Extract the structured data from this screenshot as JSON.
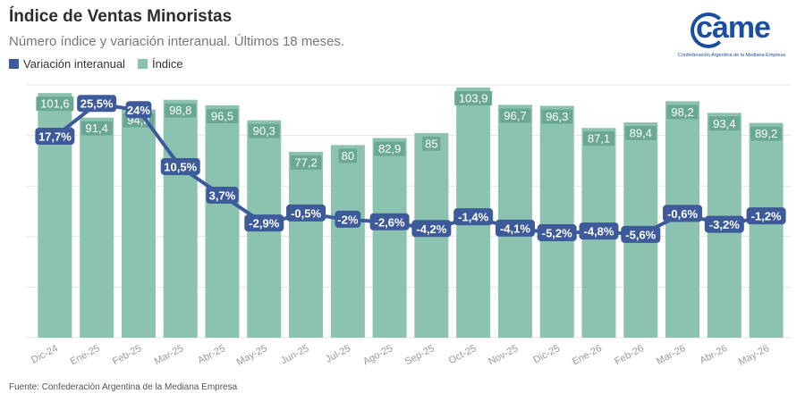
{
  "title": "Índice de Ventas Minoristas",
  "subtitle": "Número índice y variación interanual. Últimos 18 meses.",
  "legend": {
    "line": "Variación interanual",
    "bar": "Índice"
  },
  "logo": {
    "word": "came",
    "caption": "Confederación Argentina de la Mediana Empresa"
  },
  "source": "Fuente: Confederación Argentina de la Mediana Empresa",
  "colors": {
    "bar": "#8cc2b0",
    "bar_label_bg": "#6aa895",
    "line": "#3d5a9a",
    "grid": "#e6e6e6"
  },
  "chart_data": {
    "type": "bar",
    "categories": [
      "Dic-24",
      "Ene-25",
      "Feb-25",
      "Mar-25",
      "Abr-25",
      "May-25",
      "Jun-25",
      "Jul-25",
      "Ago-25",
      "Sep-25",
      "Oct-25",
      "Nov-25",
      "Dic-25",
      "Ene-26",
      "Feb-26",
      "Mar-26",
      "Abr-26",
      "May-26"
    ],
    "series": [
      {
        "name": "Índice",
        "type": "bar",
        "values": [
          101.6,
          91.4,
          94.8,
          98.8,
          96.5,
          90.3,
          77.2,
          80,
          82.9,
          85,
          103.9,
          96.7,
          96.3,
          87.1,
          89.4,
          98.2,
          93.4,
          89.2
        ],
        "labels": [
          "101,6",
          "91,4",
          "94,8",
          "98,8",
          "96,5",
          "90,3",
          "77,2",
          "80",
          "82,9",
          "85",
          "103,9",
          "96,7",
          "96,3",
          "87,1",
          "89,4",
          "98,2",
          "93,4",
          "89,2"
        ]
      },
      {
        "name": "Variación interanual",
        "type": "line",
        "values": [
          17.7,
          25.5,
          24,
          10.5,
          3.7,
          -2.9,
          -0.5,
          -2,
          -2.6,
          -4.2,
          -1.4,
          -4.1,
          -5.2,
          -4.8,
          -5.6,
          -0.6,
          -3.2,
          -1.2
        ],
        "labels": [
          "17,7%",
          "25,5%",
          "24%",
          "10,5%",
          "3,7%",
          "-2,9%",
          "-0,5%",
          "-2%",
          "-2,6%",
          "-4,2%",
          "-1,4%",
          "-4,1%",
          "-5,2%",
          "-4,8%",
          "-5,6%",
          "-0,6%",
          "-3,2%",
          "-1,2%"
        ]
      }
    ],
    "bar_ylim": [
      0,
      105
    ],
    "line_ylim": [
      -30,
      30
    ],
    "grid": true,
    "legend_position": "top-left"
  }
}
